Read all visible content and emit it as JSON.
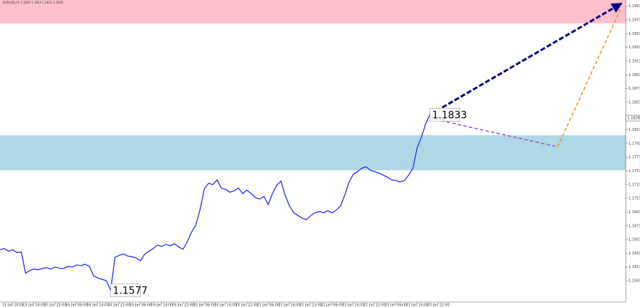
{
  "chart_data": {
    "type": "line",
    "title": "EURUSD,H1 1.1826 1.1833 1.1821 1.1828",
    "series": [
      {
        "color": "#1a1aff",
        "values": [
          1.1636,
          1.1638,
          1.1634,
          1.1636,
          1.1632,
          1.1633,
          1.1602,
          1.1606,
          1.1608,
          1.1607,
          1.1609,
          1.161,
          1.1608,
          1.1611,
          1.1609,
          1.1609,
          1.1612,
          1.1611,
          1.1614,
          1.1613,
          1.1615,
          1.1612,
          1.1598,
          1.1595,
          1.1593,
          1.1591,
          1.1577,
          1.1625,
          1.1628,
          1.163,
          1.1627,
          1.1626,
          1.1624,
          1.162,
          1.163,
          1.1634,
          1.1638,
          1.1643,
          1.1641,
          1.1644,
          1.1642,
          1.1645,
          1.164,
          1.1637,
          1.1648,
          1.1662,
          1.1672,
          1.1695,
          1.1725,
          1.1733,
          1.1731,
          1.1738,
          1.1726,
          1.1724,
          1.172,
          1.1722,
          1.1726,
          1.1718,
          1.1723,
          1.1718,
          1.1712,
          1.171,
          1.1714,
          1.1702,
          1.1718,
          1.173,
          1.1736,
          1.1715,
          1.17,
          1.169,
          1.1686,
          1.1682,
          1.168,
          1.1686,
          1.169,
          1.1692,
          1.169,
          1.1693,
          1.169,
          1.1694,
          1.17,
          1.1716,
          1.1735,
          1.1746,
          1.175,
          1.1755,
          1.1757,
          1.1752,
          1.175,
          1.1748,
          1.1745,
          1.1742,
          1.1738,
          1.1737,
          1.1735,
          1.1737,
          1.1745,
          1.1755,
          1.1785,
          1.18,
          1.182,
          1.1833
        ]
      }
    ],
    "xlim": [
      0,
      147
    ],
    "xticks": [
      {
        "value": 3,
        "label": "15 Jan 2026"
      },
      {
        "value": 8,
        "label": "15 Jan 14:00"
      },
      {
        "value": 13,
        "label": "15 Jan 22:00"
      },
      {
        "value": 18,
        "label": "16 Jan 06:00"
      },
      {
        "value": 23,
        "label": "16 Jan 14:00"
      },
      {
        "value": 28,
        "label": "16 Jan 22:00"
      },
      {
        "value": 33,
        "label": "19 Jan 06:00"
      },
      {
        "value": 38,
        "label": "19 Jan 14:00"
      },
      {
        "value": 43,
        "label": "19 Jan 22:00"
      },
      {
        "value": 48,
        "label": "20 Jan 06:00"
      },
      {
        "value": 53,
        "label": "20 Jan 14:00"
      },
      {
        "value": 58,
        "label": "20 Jan 22:00"
      },
      {
        "value": 63,
        "label": "21 Jan 06:00"
      },
      {
        "value": 68,
        "label": "21 Jan 14:00"
      },
      {
        "value": 73,
        "label": "21 Jan 22:00"
      },
      {
        "value": 78,
        "label": "22 Jan 06:00"
      },
      {
        "value": 83,
        "label": "22 Jan 14:00"
      },
      {
        "value": 88,
        "label": "22 Jan 22:00"
      },
      {
        "value": 93,
        "label": "23 Jan 06:00"
      },
      {
        "value": 98,
        "label": "23 Jan 14:00"
      },
      {
        "value": 103,
        "label": "23 Jan 22:00"
      }
    ],
    "ylim": [
      1.156,
      1.2
    ],
    "yticks": [
      1.1591,
      1.1611,
      1.1631,
      1.1651,
      1.1671,
      1.1691,
      1.1711,
      1.1731,
      1.1751,
      1.1771,
      1.1791,
      1.1811,
      1.1851,
      1.1871,
      1.1891,
      1.1911,
      1.1931,
      1.1951,
      1.1971,
      1.1991
    ],
    "current_price": 1.1828,
    "zones": [
      {
        "from": 1.1966,
        "to": 1.2,
        "color": "#ffc0cb"
      },
      {
        "from": 1.1752,
        "to": 1.1803,
        "color": "#add8e6"
      }
    ],
    "forecast": [
      {
        "color": "#9b59d0",
        "x": [
          101,
          131
        ],
        "y": [
          1.1828,
          1.1786
        ]
      },
      {
        "color": "#f0961e",
        "x": [
          131,
          146
        ],
        "y": [
          1.1786,
          1.199
        ]
      },
      {
        "color": "#000080",
        "x": [
          101,
          146
        ],
        "y": [
          1.1833,
          1.1995
        ]
      }
    ],
    "annotations": [
      {
        "x": 26,
        "value": 1.1577
      },
      {
        "x": 101,
        "value": 1.1833
      }
    ]
  }
}
